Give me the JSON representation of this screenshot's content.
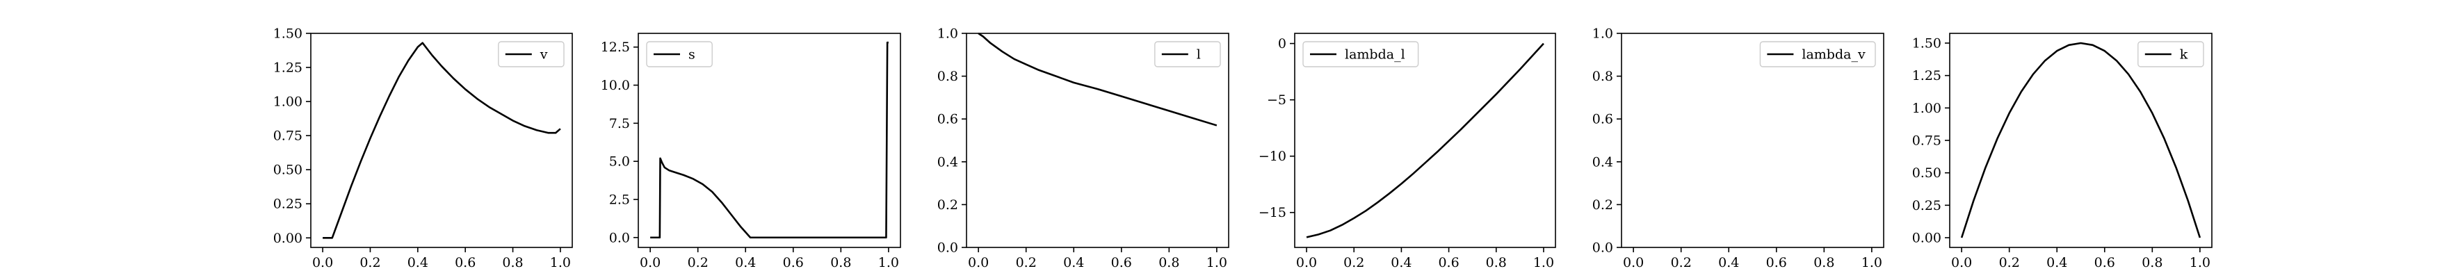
{
  "chart_data": [
    {
      "type": "line",
      "xlim": [
        -0.05,
        1.05
      ],
      "ylim": [
        -0.07,
        1.5
      ],
      "xticks": [
        0.0,
        0.2,
        0.4,
        0.6,
        0.8,
        1.0
      ],
      "xtick_labels": [
        "0.0",
        "0.2",
        "0.4",
        "0.6",
        "0.8",
        "1.0"
      ],
      "yticks": [
        0.0,
        0.25,
        0.5,
        0.75,
        1.0,
        1.25,
        1.5
      ],
      "ytick_labels": [
        "0.00",
        "0.25",
        "0.50",
        "0.75",
        "1.00",
        "1.25",
        "1.50"
      ],
      "legend_position": "upper right",
      "series": [
        {
          "name": "v",
          "x": [
            0.0,
            0.04,
            0.08,
            0.12,
            0.16,
            0.2,
            0.24,
            0.28,
            0.32,
            0.36,
            0.4,
            0.42,
            0.46,
            0.5,
            0.55,
            0.6,
            0.65,
            0.7,
            0.75,
            0.8,
            0.85,
            0.9,
            0.95,
            0.98,
            1.0
          ],
          "y": [
            0.0,
            0.0,
            0.19,
            0.38,
            0.56,
            0.73,
            0.89,
            1.04,
            1.18,
            1.3,
            1.4,
            1.43,
            1.34,
            1.26,
            1.17,
            1.09,
            1.02,
            0.96,
            0.91,
            0.86,
            0.82,
            0.79,
            0.77,
            0.77,
            0.8
          ]
        }
      ]
    },
    {
      "type": "line",
      "xlim": [
        -0.05,
        1.05
      ],
      "ylim": [
        -0.65,
        13.4
      ],
      "xticks": [
        0.0,
        0.2,
        0.4,
        0.6,
        0.8,
        1.0
      ],
      "xtick_labels": [
        "0.0",
        "0.2",
        "0.4",
        "0.6",
        "0.8",
        "1.0"
      ],
      "yticks": [
        0.0,
        2.5,
        5.0,
        7.5,
        10.0,
        12.5
      ],
      "ytick_labels": [
        "0.0",
        "2.5",
        "5.0",
        "7.5",
        "10.0",
        "12.5"
      ],
      "legend_position": "upper left",
      "series": [
        {
          "name": "s",
          "x": [
            0.0,
            0.04,
            0.042,
            0.05,
            0.06,
            0.08,
            0.1,
            0.14,
            0.18,
            0.22,
            0.26,
            0.3,
            0.34,
            0.38,
            0.42,
            0.5,
            0.6,
            0.7,
            0.8,
            0.9,
            0.98,
            0.99,
            0.995,
            1.0
          ],
          "y": [
            0.0,
            0.0,
            5.2,
            4.9,
            4.6,
            4.4,
            4.3,
            4.1,
            3.85,
            3.5,
            3.0,
            2.3,
            1.5,
            0.7,
            0.0,
            0.0,
            0.0,
            0.0,
            0.0,
            0.0,
            0.0,
            0.0,
            12.8,
            12.8
          ]
        }
      ]
    },
    {
      "type": "line",
      "xlim": [
        -0.05,
        1.05
      ],
      "ylim": [
        0.0,
        1.0
      ],
      "xticks": [
        0.0,
        0.2,
        0.4,
        0.6,
        0.8,
        1.0
      ],
      "xtick_labels": [
        "0.0",
        "0.2",
        "0.4",
        "0.6",
        "0.8",
        "1.0"
      ],
      "yticks": [
        0.0,
        0.2,
        0.4,
        0.6,
        0.8,
        1.0
      ],
      "ytick_labels": [
        "0.0",
        "0.2",
        "0.4",
        "0.6",
        "0.8",
        "1.0"
      ],
      "legend_position": "upper right",
      "series": [
        {
          "name": "l",
          "x": [
            0.0,
            0.02,
            0.05,
            0.1,
            0.15,
            0.2,
            0.25,
            0.3,
            0.35,
            0.4,
            0.45,
            0.5,
            0.6,
            0.7,
            0.8,
            0.9,
            1.0
          ],
          "y": [
            1.0,
            0.985,
            0.955,
            0.915,
            0.88,
            0.855,
            0.83,
            0.81,
            0.79,
            0.77,
            0.755,
            0.74,
            0.706,
            0.672,
            0.638,
            0.604,
            0.57
          ]
        }
      ]
    },
    {
      "type": "line",
      "xlim": [
        -0.05,
        1.05
      ],
      "ylim": [
        -18.1,
        0.9
      ],
      "xticks": [
        0.0,
        0.2,
        0.4,
        0.6,
        0.8,
        1.0
      ],
      "xtick_labels": [
        "0.0",
        "0.2",
        "0.4",
        "0.6",
        "0.8",
        "1.0"
      ],
      "yticks": [
        -15,
        -10,
        -5,
        0
      ],
      "ytick_labels": [
        "−15",
        "−10",
        "−5",
        "0"
      ],
      "legend_position": "upper left",
      "series": [
        {
          "name": "lambda_l",
          "x": [
            0.0,
            0.05,
            0.1,
            0.15,
            0.2,
            0.25,
            0.3,
            0.35,
            0.4,
            0.45,
            0.5,
            0.55,
            0.6,
            0.65,
            0.7,
            0.75,
            0.8,
            0.85,
            0.9,
            0.95,
            1.0
          ],
          "y": [
            -17.2,
            -16.95,
            -16.6,
            -16.1,
            -15.5,
            -14.85,
            -14.1,
            -13.3,
            -12.45,
            -11.55,
            -10.6,
            -9.65,
            -8.65,
            -7.65,
            -6.6,
            -5.55,
            -4.5,
            -3.4,
            -2.3,
            -1.15,
            0.0
          ]
        }
      ]
    },
    {
      "type": "line",
      "xlim": [
        -0.05,
        1.05
      ],
      "ylim": [
        0.0,
        1.0
      ],
      "xticks": [
        0.0,
        0.2,
        0.4,
        0.6,
        0.8,
        1.0
      ],
      "xtick_labels": [
        "0.0",
        "0.2",
        "0.4",
        "0.6",
        "0.8",
        "1.0"
      ],
      "yticks": [
        0.0,
        0.2,
        0.4,
        0.6,
        0.8,
        1.0
      ],
      "ytick_labels": [
        "0.0",
        "0.2",
        "0.4",
        "0.6",
        "0.8",
        "1.0"
      ],
      "legend_position": "upper right",
      "series": [
        {
          "name": "lambda_v",
          "x": [],
          "y": []
        }
      ]
    },
    {
      "type": "line",
      "xlim": [
        -0.05,
        1.05
      ],
      "ylim": [
        -0.075,
        1.575
      ],
      "xticks": [
        0.0,
        0.2,
        0.4,
        0.6,
        0.8,
        1.0
      ],
      "xtick_labels": [
        "0.0",
        "0.2",
        "0.4",
        "0.6",
        "0.8",
        "1.0"
      ],
      "yticks": [
        0.0,
        0.25,
        0.5,
        0.75,
        1.0,
        1.25,
        1.5
      ],
      "ytick_labels": [
        "0.00",
        "0.25",
        "0.50",
        "0.75",
        "1.00",
        "1.25",
        "1.50"
      ],
      "legend_position": "upper right",
      "series": [
        {
          "name": "k",
          "x": [
            0.0,
            0.05,
            0.1,
            0.15,
            0.2,
            0.25,
            0.3,
            0.35,
            0.4,
            0.45,
            0.5,
            0.55,
            0.6,
            0.65,
            0.7,
            0.75,
            0.8,
            0.85,
            0.9,
            0.95,
            1.0
          ],
          "y": [
            0.0,
            0.285,
            0.54,
            0.765,
            0.96,
            1.125,
            1.26,
            1.365,
            1.44,
            1.485,
            1.5,
            1.485,
            1.44,
            1.365,
            1.26,
            1.125,
            0.96,
            0.765,
            0.54,
            0.285,
            0.0
          ]
        }
      ]
    }
  ]
}
